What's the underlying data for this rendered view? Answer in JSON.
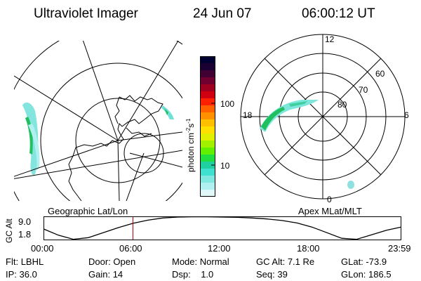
{
  "header": {
    "instrument": "Ultraviolet Imager",
    "date": "24 Jun 07",
    "time": "06:00:12 UT"
  },
  "left_panel": {
    "label": "Geographic Lat/Lon"
  },
  "right_panel": {
    "label": "Apex MLat/MLT",
    "mlt_labels": {
      "top": "12",
      "left": "18",
      "right": "6",
      "bottom": "0"
    },
    "lat_labels": [
      "60",
      "70",
      "80"
    ]
  },
  "colorbar": {
    "unit_label": "photon cm",
    "unit_sup1": "-2",
    "unit_s": "s",
    "unit_sup2": "-1",
    "tick_labels": [
      "100",
      "10"
    ],
    "colors": [
      "#000033",
      "#1a0033",
      "#400033",
      "#700030",
      "#a00020",
      "#d00010",
      "#ff2000",
      "#ff6000",
      "#ff9000",
      "#ffc000",
      "#ffe000",
      "#e0f000",
      "#a0f000",
      "#60f000",
      "#20e040",
      "#20d0a0",
      "#40e0d0",
      "#80e8e0",
      "#b0f0f0",
      "#e0f8f8"
    ]
  },
  "altitude_plot": {
    "ylabel": "GC Alt",
    "y_ticks": [
      "9.0",
      "1.8"
    ],
    "x_ticks": [
      "00:00",
      "06:00",
      "12:00",
      "18:00",
      "23:59"
    ],
    "current_time_marker": "06:00",
    "chart_data": {
      "type": "line",
      "x_hours": [
        0,
        1,
        2,
        3,
        4,
        5,
        6,
        7,
        8,
        9,
        10,
        11,
        12,
        13,
        14,
        15,
        16,
        17,
        18,
        19,
        20,
        21,
        22,
        23,
        23.98
      ],
      "y": [
        5.2,
        3.2,
        1.9,
        2.4,
        4.0,
        5.6,
        7.0,
        8.0,
        8.7,
        9.0,
        9.1,
        9.1,
        9.0,
        8.9,
        8.7,
        8.4,
        7.9,
        7.1,
        5.8,
        4.0,
        2.2,
        1.9,
        3.3,
        4.8,
        5.8
      ],
      "ylim": [
        1.8,
        9.0
      ],
      "xlim": [
        0,
        24
      ]
    }
  },
  "status": {
    "filter_label": "Flt:",
    "filter_value": "LBHL",
    "ip_label": "IP:",
    "ip_value": "36.0",
    "door_label": "Door:",
    "door_value": "Open",
    "gain_label": "Gain:",
    "gain_value": "14",
    "mode_label": "Mode:",
    "mode_value": "Normal",
    "dsp_label": "Dsp:",
    "dsp_value": "1.0",
    "gcalt_label": "GC Alt:",
    "gcalt_value": "7.1 Re",
    "seq_label": "Seq:",
    "seq_value": "39",
    "glat_label": "GLat:",
    "glat_value": "-73.9",
    "glon_label": "GLon:",
    "glon_value": "186.5"
  }
}
